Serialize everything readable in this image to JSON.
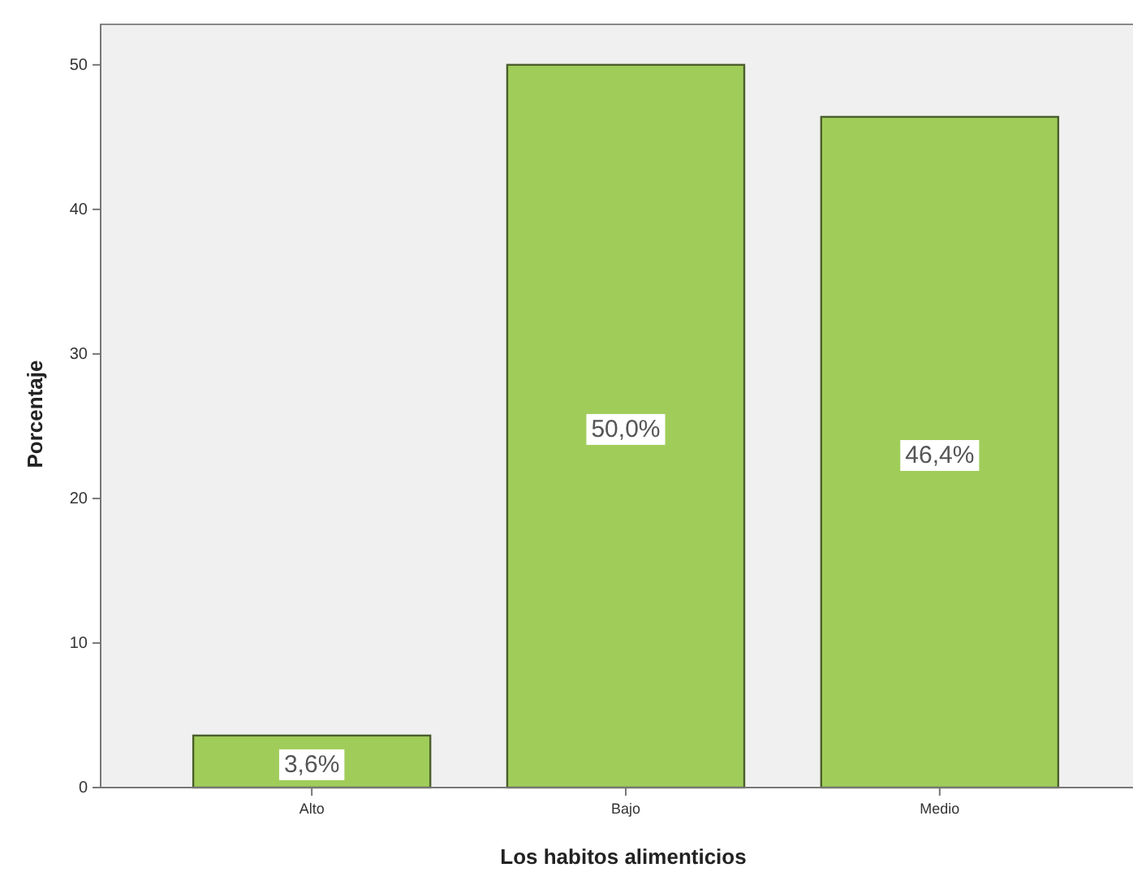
{
  "chart_data": {
    "type": "bar",
    "xlabel": "Los habitos alimenticios",
    "ylabel": "Porcentaje",
    "categories": [
      "Alto",
      "Bajo",
      "Medio"
    ],
    "values": [
      3.6,
      50.0,
      46.4
    ],
    "value_labels": [
      "3,6%",
      "50,0%",
      "46,4%"
    ],
    "color": "#a0cd5a",
    "ylim": [
      0,
      52.8
    ],
    "yticks": [
      0,
      10,
      20,
      30,
      40,
      50
    ]
  }
}
